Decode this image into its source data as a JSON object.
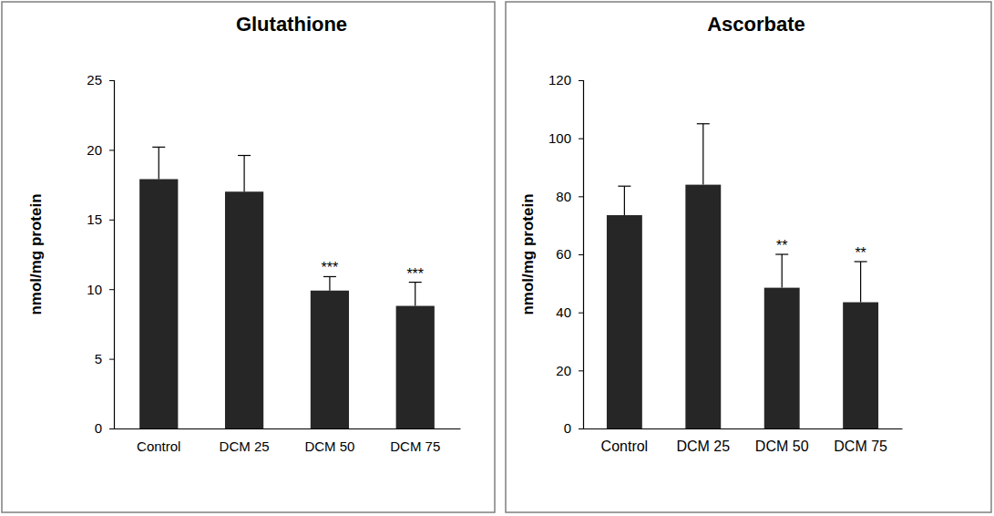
{
  "chart_data": [
    {
      "type": "bar",
      "title": "Glutathione",
      "y_label": "nmol/mg protein",
      "categories": [
        "Control",
        "DCM 25",
        "DCM 50",
        "DCM 75"
      ],
      "values": [
        17.9,
        17.0,
        9.9,
        8.8
      ],
      "errors": [
        2.3,
        2.6,
        1.0,
        1.7
      ],
      "annotations": [
        null,
        null,
        "***",
        "***"
      ],
      "color": "#262626",
      "ylim": [
        0,
        25
      ],
      "yticks": [
        0,
        5,
        10,
        15,
        20,
        25
      ],
      "grid": false
    },
    {
      "type": "bar",
      "title": "Ascorbate",
      "y_label": "nmol/mg protein",
      "categories": [
        "Control",
        "DCM 25",
        "DCM 50",
        "DCM 75"
      ],
      "values": [
        73.5,
        84.0,
        48.5,
        43.5
      ],
      "errors": [
        10.0,
        21.0,
        11.5,
        14.0
      ],
      "annotations": [
        null,
        null,
        "**",
        "**"
      ],
      "color": "#262626",
      "ylim": [
        0,
        120
      ],
      "yticks": [
        0,
        20,
        40,
        60,
        80,
        100,
        120
      ],
      "grid": false
    }
  ]
}
